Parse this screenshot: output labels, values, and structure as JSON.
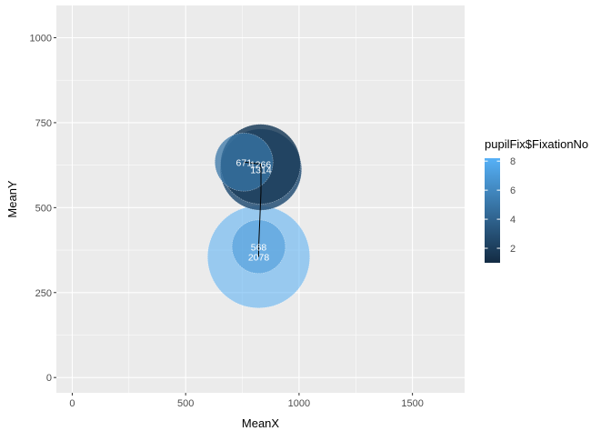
{
  "chart_data": {
    "type": "scatter",
    "title": "",
    "xlabel": "MeanX",
    "ylabel": "MeanY",
    "xlim": [
      -70,
      1730
    ],
    "ylim": [
      -45,
      1095
    ],
    "xticks": [
      0,
      500,
      1000,
      1500
    ],
    "yticks": [
      0,
      250,
      500,
      750,
      1000
    ],
    "x_tick_labels": [
      "0",
      "500",
      "1000",
      "1500"
    ],
    "y_tick_labels": [
      "0",
      "250",
      "500",
      "750",
      "1000"
    ],
    "grid": true,
    "legend": {
      "title": "pupilFix$FixationNo",
      "placement": "right",
      "range": [
        1,
        8.2
      ],
      "ticks": [
        2,
        4,
        6,
        8
      ],
      "tick_labels": [
        "2",
        "4",
        "6",
        "8"
      ],
      "low_color": "#132b43",
      "high_color": "#56b1f7"
    },
    "path_order": [
      5,
      2,
      3,
      4,
      7,
      8
    ],
    "points": [
      {
        "fixation_no": 5,
        "x": 757,
        "y": 634,
        "duration": 671,
        "label": "671",
        "alpha": 0.75
      },
      {
        "fixation_no": 2,
        "x": 830,
        "y": 628,
        "duration": 1266,
        "label": "1266",
        "alpha": 0.85
      },
      {
        "fixation_no": 3,
        "x": 832,
        "y": 612,
        "duration": 1314,
        "label": "1314",
        "alpha": 0.85
      },
      {
        "fixation_no": 4,
        "x": 832,
        "y": 545,
        "duration": 0,
        "label": "",
        "alpha": 0.0
      },
      {
        "fixation_no": 7,
        "x": 822,
        "y": 385,
        "duration": 568,
        "label": "568",
        "alpha": 0.6
      },
      {
        "fixation_no": 8,
        "x": 822,
        "y": 355,
        "duration": 2078,
        "label": "2078",
        "alpha": 0.55
      }
    ]
  }
}
